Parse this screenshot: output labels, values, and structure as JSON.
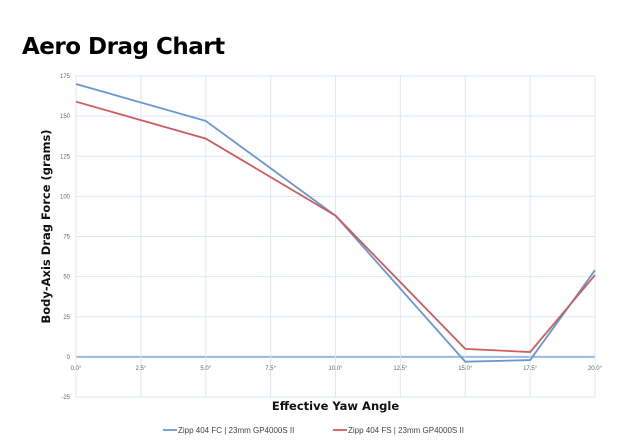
{
  "chart_data": {
    "type": "line",
    "title": "Aero Drag Chart",
    "xlabel": "Effective Yaw Angle",
    "ylabel": "Body-Axis Drag Force (grams)",
    "xlim": [
      0,
      20
    ],
    "ylim": [
      -25,
      175
    ],
    "x_ticks": [
      "0.0°",
      "2.5°",
      "5.0°",
      "7.5°",
      "10.0°",
      "12.5°",
      "15.0°",
      "17.5°",
      "20.0°"
    ],
    "x_tick_values": [
      0,
      2.5,
      5,
      7.5,
      10,
      12.5,
      15,
      17.5,
      20
    ],
    "y_ticks": [
      "175",
      "150",
      "125",
      "100",
      "75",
      "50",
      "25",
      "0",
      "-25"
    ],
    "y_tick_values": [
      175,
      150,
      125,
      100,
      75,
      50,
      25,
      0,
      -25
    ],
    "grid": true,
    "legend_position": "bottom",
    "x": [
      0,
      5,
      10,
      15,
      17.5,
      20
    ],
    "series": [
      {
        "name": "Zipp 404 FC | 23mm GP4000S II",
        "color": "#6a97cf",
        "values": [
          170,
          147,
          88,
          -3,
          -2,
          54
        ]
      },
      {
        "name": "Zipp 404 FS | 23mm GP4000S II",
        "color": "#cd5c5c",
        "values": [
          159,
          136,
          88,
          5,
          3,
          51
        ]
      }
    ]
  }
}
